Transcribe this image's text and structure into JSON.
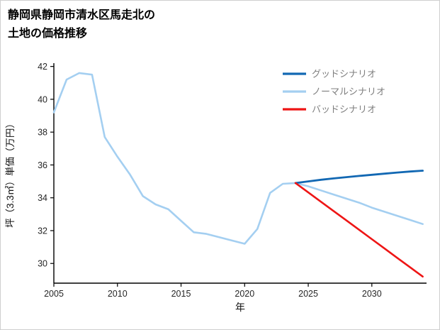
{
  "title": {
    "line1": "静岡県静岡市清水区馬走北の",
    "line2": "土地の価格推移"
  },
  "chart_data": {
    "type": "line",
    "title": "静岡県静岡市清水区馬走北の土地の価格推移",
    "xlabel": "年",
    "ylabel": "坪（3.3㎡）単価（万円）",
    "xlim": [
      2005,
      2034.3
    ],
    "ylim": [
      28.8,
      42.2
    ],
    "xticks": [
      2005,
      2010,
      2015,
      2020,
      2025,
      2030
    ],
    "yticks": [
      30,
      32,
      34,
      36,
      38,
      40,
      42
    ],
    "grid": false,
    "legend_position": "upper right",
    "legend_text_color": "#7f7f7f",
    "draw_order": [
      1,
      0,
      2
    ],
    "series": [
      {
        "id": "good",
        "name": "グッドシナリオ",
        "color": "#1268b3",
        "width": 2.8,
        "x": [
          2024,
          2025,
          2026,
          2027,
          2028,
          2029,
          2030,
          2031,
          2032,
          2033,
          2034
        ],
        "y": [
          34.9,
          35.0,
          35.1,
          35.18,
          35.26,
          35.33,
          35.4,
          35.47,
          35.54,
          35.6,
          35.65
        ]
      },
      {
        "id": "normal",
        "name": "ノーマルシナリオ",
        "color": "#a4cff1",
        "width": 2.6,
        "x": [
          2005,
          2006,
          2007,
          2008,
          2009,
          2010,
          2011,
          2012,
          2013,
          2014,
          2015,
          2016,
          2017,
          2018,
          2019,
          2020,
          2021,
          2022,
          2023,
          2024,
          2025,
          2026,
          2027,
          2028,
          2029,
          2030,
          2031,
          2032,
          2033,
          2034
        ],
        "y": [
          39.2,
          41.2,
          41.6,
          41.5,
          37.7,
          36.5,
          35.4,
          34.1,
          33.6,
          33.3,
          32.6,
          31.9,
          31.8,
          31.6,
          31.4,
          31.2,
          32.1,
          34.3,
          34.85,
          34.9,
          34.7,
          34.45,
          34.2,
          33.95,
          33.7,
          33.4,
          33.15,
          32.9,
          32.65,
          32.4
        ]
      },
      {
        "id": "bad",
        "name": "バッドシナリオ",
        "color": "#ee1515",
        "width": 2.6,
        "x": [
          2024,
          2025,
          2026,
          2027,
          2028,
          2029,
          2030,
          2031,
          2032,
          2033,
          2034
        ],
        "y": [
          34.9,
          34.33,
          33.76,
          33.19,
          32.62,
          32.05,
          31.48,
          30.91,
          30.34,
          29.77,
          29.2
        ]
      }
    ]
  }
}
